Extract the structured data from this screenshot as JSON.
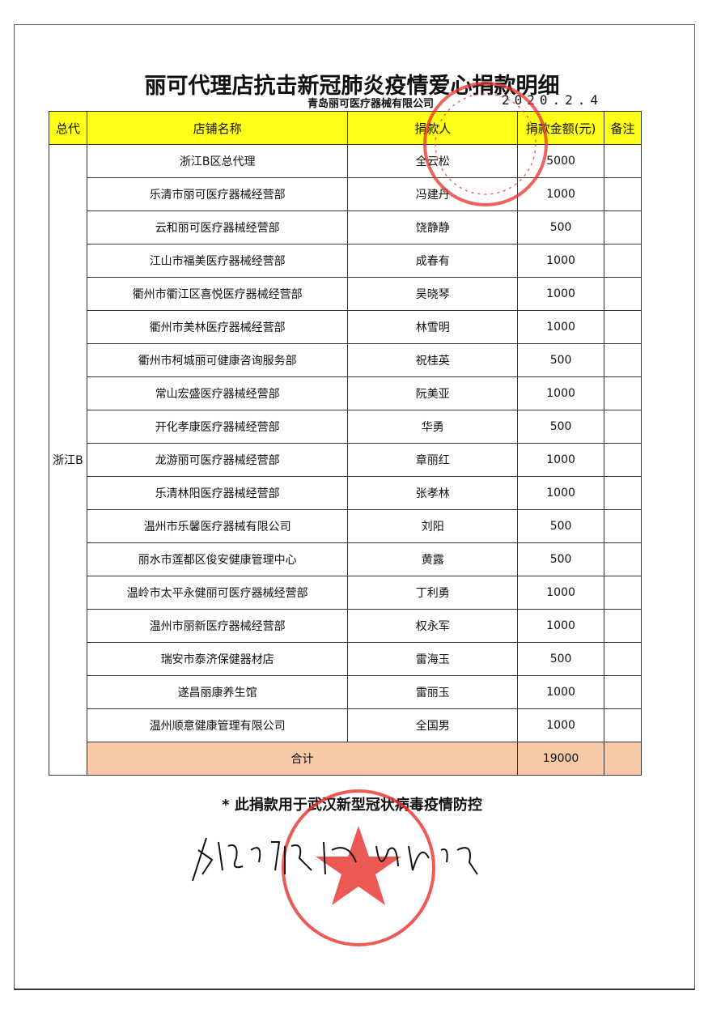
{
  "title": "丽可代理店抗击新冠肺炎疫情爱心捐款明细",
  "company": "青岛丽可医疗器械有限公司",
  "date": "2020.2.4",
  "columns": [
    "总代",
    "店铺名称",
    "捐款人",
    "捐款金额(元)",
    "备注"
  ],
  "region": "浙江B",
  "rows": [
    {
      "store": "浙江B区总代理",
      "donor": "全云松",
      "amount": "5000"
    },
    {
      "store": "乐清市丽可医疗器械经营部",
      "donor": "冯建丹",
      "amount": "1000"
    },
    {
      "store": "云和丽可医疗器械经营部",
      "donor": "饶静静",
      "amount": "500"
    },
    {
      "store": "江山市福美医疗器械经营部",
      "donor": "成春有",
      "amount": "1000"
    },
    {
      "store": "衢州市衢江区喜悦医疗器械经营部",
      "donor": "吴晓琴",
      "amount": "1000"
    },
    {
      "store": "衢州市美林医疗器械经营部",
      "donor": "林雪明",
      "amount": "1000"
    },
    {
      "store": "衢州市柯城丽可健康咨询服务部",
      "donor": "祝桂英",
      "amount": "500"
    },
    {
      "store": "常山宏盛医疗器械经营部",
      "donor": "阮美亚",
      "amount": "1000"
    },
    {
      "store": "开化孝康医疗器械经营部",
      "donor": "华勇",
      "amount": "500"
    },
    {
      "store": "龙游丽可医疗器械经营部",
      "donor": "章丽红",
      "amount": "1000"
    },
    {
      "store": "乐清林阳医疗器械经营部",
      "donor": "张孝林",
      "amount": "1000"
    },
    {
      "store": "温州市乐馨医疗器械有限公司",
      "donor": "刘阳",
      "amount": "500"
    },
    {
      "store": "丽水市莲都区俊安健康管理中心",
      "donor": "黄露",
      "amount": "500"
    },
    {
      "store": "温岭市太平永健丽可医疗器械经营部",
      "donor": "丁利勇",
      "amount": "1000"
    },
    {
      "store": "温州市丽新医疗器械经营部",
      "donor": "权永军",
      "amount": "1000"
    },
    {
      "store": "瑞安市泰济保健器材店",
      "donor": "雷海玉",
      "amount": "500"
    },
    {
      "store": "遂昌丽康养生馆",
      "donor": "雷丽玉",
      "amount": "1000"
    },
    {
      "store": "温州顺意健康管理有限公司",
      "donor": "全国男",
      "amount": "1000"
    }
  ],
  "total": {
    "label": "合计",
    "amount": "19000"
  },
  "note": "* 此捐款用于武汉新型冠状病毒疫情防控",
  "colors": {
    "header": "#ffff1a",
    "total": "#f7c9a6",
    "stamp": "#e8302a"
  }
}
